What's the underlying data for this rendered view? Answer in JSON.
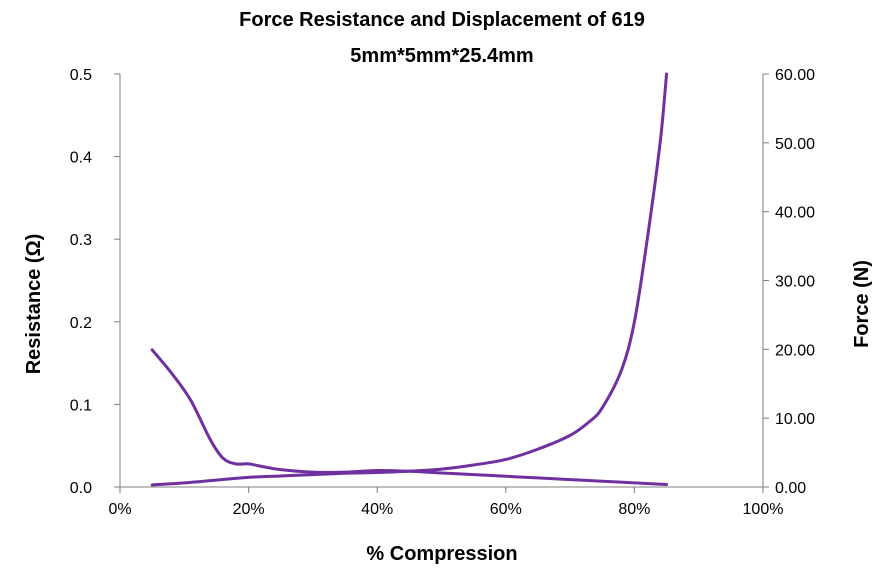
{
  "chart_data": {
    "type": "line",
    "title_lines": [
      "Force Resistance and Displacement  of 619",
      "5mm*5mm*25.4mm"
    ],
    "xlabel": "% Compression",
    "ylabel_left": "Resistance  (Ω)",
    "ylabel_right": "Force  (N)",
    "xlim": [
      0,
      100
    ],
    "ylim_left": [
      0,
      0.5
    ],
    "ylim_right": [
      0,
      60
    ],
    "x_ticks": [
      {
        "value": 0,
        "label": "0%"
      },
      {
        "value": 20,
        "label": "20%"
      },
      {
        "value": 40,
        "label": "40%"
      },
      {
        "value": 60,
        "label": "60%"
      },
      {
        "value": 80,
        "label": "80%"
      },
      {
        "value": 100,
        "label": "100%"
      }
    ],
    "y_left_ticks": [
      {
        "value": 0,
        "label": "0.0"
      },
      {
        "value": 0.1,
        "label": "0.1"
      },
      {
        "value": 0.2,
        "label": "0.2"
      },
      {
        "value": 0.3,
        "label": "0.3"
      },
      {
        "value": 0.4,
        "label": "0.4"
      },
      {
        "value": 0.5,
        "label": "0.5"
      }
    ],
    "y_right_ticks": [
      {
        "value": 0,
        "label": "0.00"
      },
      {
        "value": 10,
        "label": "10.00"
      },
      {
        "value": 20,
        "label": "20.00"
      },
      {
        "value": 30,
        "label": "30.00"
      },
      {
        "value": 40,
        "label": "40.00"
      },
      {
        "value": 50,
        "label": "50.00"
      },
      {
        "value": 60,
        "label": "60.00"
      }
    ],
    "grid": false,
    "legend": "none",
    "line_color": "#7030a0",
    "series": [
      {
        "axis": "left",
        "x": [
          5,
          8,
          11,
          14,
          16,
          18,
          20,
          22,
          25,
          30,
          35,
          40,
          45,
          50,
          55,
          60,
          65,
          70,
          75,
          80,
          85
        ],
        "y": [
          0.166,
          0.138,
          0.105,
          0.058,
          0.035,
          0.028,
          0.028,
          0.025,
          0.021,
          0.018,
          0.018,
          0.02,
          0.019,
          0.017,
          0.015,
          0.013,
          0.011,
          0.009,
          0.007,
          0.005,
          0.003
        ]
      },
      {
        "axis": "right",
        "x": [
          5,
          10,
          15,
          20,
          25,
          30,
          35,
          40,
          45,
          50,
          55,
          60,
          65,
          70,
          73,
          75,
          78,
          80,
          82,
          84,
          85
        ],
        "y": [
          0.3,
          0.6,
          1.0,
          1.4,
          1.6,
          1.8,
          2.0,
          2.1,
          2.3,
          2.6,
          3.2,
          4.0,
          5.5,
          7.5,
          9.5,
          11.5,
          17.0,
          24.0,
          36.0,
          50.0,
          60.0
        ]
      }
    ]
  }
}
